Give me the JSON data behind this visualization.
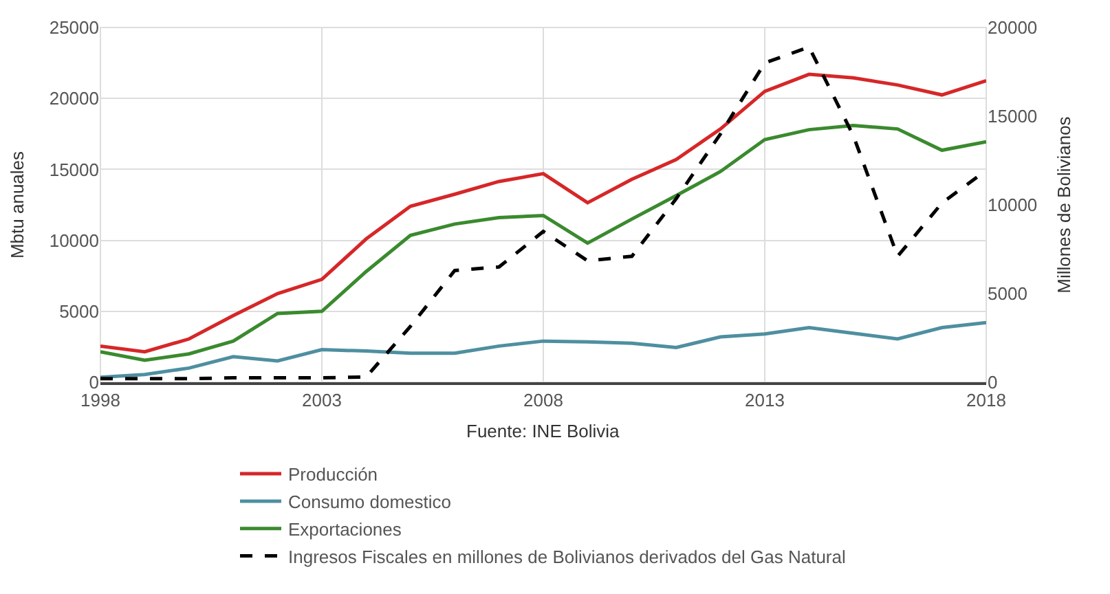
{
  "chart_data": {
    "type": "line",
    "ylabel": "Mbtu anuales",
    "y2label": "Millones de Bolivianos",
    "annotations": [
      "Fuente: INE Bolivia"
    ],
    "x": [
      1998,
      1999,
      2000,
      2001,
      2002,
      2003,
      2004,
      2005,
      2006,
      2007,
      2008,
      2009,
      2010,
      2011,
      2012,
      2013,
      2014,
      2015,
      2016,
      2017,
      2018
    ],
    "xlim": [
      1998,
      2018
    ],
    "xticks": [
      1998,
      2003,
      2008,
      2013,
      2018
    ],
    "ylim": [
      0,
      25000
    ],
    "yticks": [
      0,
      5000,
      10000,
      15000,
      20000,
      25000
    ],
    "y2lim": [
      0,
      20000
    ],
    "y2ticks": [
      0,
      5000,
      10000,
      15000,
      20000
    ],
    "grid": true,
    "legend": "bottom",
    "marker": "none",
    "series": [
      {
        "name": "Producción",
        "color": "#d62728",
        "line_style": "solid",
        "values": [
          2550,
          2150,
          3050,
          4700,
          6250,
          7250,
          10100,
          12400,
          13250,
          14150,
          14700,
          12650,
          14300,
          15700,
          17850,
          20500,
          21700,
          21450,
          20950,
          20250,
          21250
        ]
      },
      {
        "name": "Consumo domestico",
        "color": "#4e8fa0",
        "line_style": "solid",
        "values": [
          350,
          550,
          1000,
          1800,
          1500,
          2300,
          2200,
          2050,
          2050,
          2550,
          2900,
          2850,
          2750,
          2450,
          3200,
          3400,
          3850,
          3450,
          3050,
          3850,
          4200
        ]
      },
      {
        "name": "Exportaciones",
        "color": "#3a8a2e",
        "line_style": "solid",
        "values": [
          2150,
          1550,
          2000,
          2900,
          4850,
          5000,
          7800,
          10350,
          11150,
          11600,
          11750,
          9800,
          11500,
          13150,
          14850,
          17100,
          17800,
          18100,
          17850,
          16350,
          16950
        ]
      },
      {
        "name": "Ingresos Fiscales en millones de Bolivianos derivados del Gas Natural",
        "color": "#000000",
        "line_style": "dashed",
        "axis": "y2",
        "values": [
          200,
          200,
          200,
          250,
          250,
          250,
          300,
          3150,
          6300,
          6500,
          8500,
          6850,
          7100,
          10350,
          14000,
          18000,
          18900,
          13900,
          7100,
          10100,
          11950
        ]
      }
    ]
  }
}
